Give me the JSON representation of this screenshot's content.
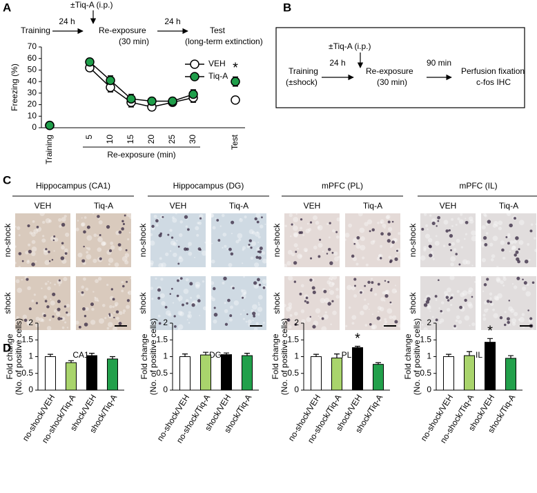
{
  "panel_labels": [
    "A",
    "B",
    "C",
    "D"
  ],
  "schematic_a": {
    "drug": "±Tiq-A (i.p.)",
    "interval_1": "24 h",
    "training": "Training",
    "reexposure": "Re-exposure",
    "reexposure_duration": "(30 min)",
    "interval_2": "24 h",
    "test": "Test",
    "test_note": "(long-term extinction)"
  },
  "schematic_b": {
    "drug": "±Tiq-A (i.p.)",
    "interval_1": "24 h",
    "training": "Training",
    "training_note": "(±shock)",
    "reexposure": "Re-exposure",
    "reexposure_duration": "(30 min)",
    "interval_2": "90 min",
    "outcome_1": "Perfusion fixation",
    "outcome_2": "c-fos IHC"
  },
  "micrographs": {
    "regions": [
      "Hippocampus (CA1)",
      "Hippocampus (DG)",
      "mPFC (PL)",
      "mPFC (IL)"
    ],
    "columns": [
      "VEH",
      "Tiq-A"
    ],
    "rows": [
      "no-shock",
      "shock"
    ]
  },
  "chart_data": [
    {
      "type": "line",
      "y_label": "Freezing (%)",
      "x_label": "Re-exposure (min)",
      "categories": [
        "Training",
        "5",
        "10",
        "15",
        "20",
        "25",
        "30",
        "Test"
      ],
      "series": [
        {
          "name": "VEH",
          "color": "#ffffff",
          "values": [
            2,
            52,
            35,
            22,
            18,
            22,
            26,
            24
          ],
          "errors": [
            1,
            3,
            4,
            4,
            3,
            3,
            4,
            3
          ]
        },
        {
          "name": "Tiq-A",
          "color": "#1f9e4a",
          "values": [
            2,
            57,
            41,
            25,
            23,
            23,
            29,
            40
          ],
          "errors": [
            1,
            3,
            4,
            4,
            3,
            3,
            4,
            4
          ]
        }
      ],
      "significance": [
        null,
        null,
        null,
        null,
        null,
        null,
        null,
        "*"
      ],
      "ylim": [
        0,
        70
      ],
      "yticks": [
        0,
        10,
        20,
        30,
        40,
        50,
        60,
        70
      ],
      "legend": "upper right"
    },
    {
      "type": "bar",
      "title": "CA1",
      "y_label": [
        "Fold change",
        "(No. of positive cells)"
      ],
      "categories": [
        "no-shock/VEH",
        "no-shock/Tiq-A",
        "shock/VEH",
        "shock/Tiq-A"
      ],
      "values": [
        1.0,
        0.82,
        1.03,
        0.93
      ],
      "errors": [
        0.07,
        0.06,
        0.07,
        0.07
      ],
      "colors": [
        "#ffffff",
        "#a9d46c",
        "#000000",
        "#22a04b"
      ],
      "significance": [
        null,
        null,
        null,
        null
      ],
      "ylim": [
        0,
        2
      ],
      "yticks": [
        0,
        0.5,
        1,
        1.5,
        2
      ]
    },
    {
      "type": "bar",
      "title": "DG",
      "y_label": [
        "Fold change",
        "(No. of positive cells)"
      ],
      "categories": [
        "no-shock/VEH",
        "no-shock/Tiq-A",
        "shock/VEH",
        "shock/Tiq-A"
      ],
      "values": [
        1.0,
        1.05,
        1.06,
        1.03
      ],
      "errors": [
        0.08,
        0.08,
        0.05,
        0.07
      ],
      "colors": [
        "#ffffff",
        "#a9d46c",
        "#000000",
        "#22a04b"
      ],
      "significance": [
        null,
        null,
        null,
        null
      ],
      "ylim": [
        0,
        2
      ],
      "yticks": [
        0,
        0.5,
        1,
        1.5,
        2
      ]
    },
    {
      "type": "bar",
      "title": "PL",
      "y_label": [
        "Fold change",
        "(No. of positive cells)"
      ],
      "categories": [
        "no-shock/VEH",
        "no-shock/Tiq-A",
        "shock/VEH",
        "shock/Tiq-A"
      ],
      "values": [
        1.0,
        0.96,
        1.27,
        0.77
      ],
      "errors": [
        0.07,
        0.12,
        0.04,
        0.05
      ],
      "colors": [
        "#ffffff",
        "#a9d46c",
        "#000000",
        "#22a04b"
      ],
      "significance": [
        null,
        null,
        "*",
        null
      ],
      "ylim": [
        0,
        2
      ],
      "yticks": [
        0,
        0.5,
        1,
        1.5,
        2
      ]
    },
    {
      "type": "bar",
      "title": "IL",
      "y_label": [
        "Fold change",
        "(No. of positive cells)"
      ],
      "categories": [
        "no-shock/VEH",
        "no-shock/Tiq-A",
        "shock/VEH",
        "shock/Tiq-A"
      ],
      "values": [
        1.0,
        1.03,
        1.43,
        0.95
      ],
      "errors": [
        0.07,
        0.12,
        0.11,
        0.08
      ],
      "colors": [
        "#ffffff",
        "#a9d46c",
        "#000000",
        "#22a04b"
      ],
      "significance": [
        null,
        null,
        "*",
        null
      ],
      "ylim": [
        0,
        2
      ],
      "yticks": [
        0,
        0.5,
        1,
        1.5,
        2
      ]
    }
  ]
}
